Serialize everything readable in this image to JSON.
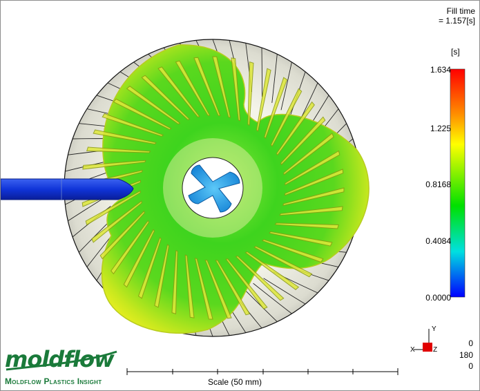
{
  "result": {
    "title": "Fill time",
    "value_line": "= 1.157[s]"
  },
  "legend": {
    "unit": "[s]",
    "ticks": [
      "1.634",
      "1.225",
      "0.8168",
      "0.4084",
      "0.0000"
    ],
    "gradient_colors": [
      "#ff0000",
      "#ffa000",
      "#ffff00",
      "#00e000",
      "#00ffff",
      "#0000ff"
    ]
  },
  "scale": {
    "label": "Scale (50 mm)"
  },
  "axis_triad": {
    "labels": [
      "X",
      "Y",
      "Z"
    ],
    "accent": "#e00000"
  },
  "rotation": {
    "x": "0",
    "y": "180",
    "z": "0"
  },
  "branding": {
    "logo": "moldflow",
    "product": "Moldflow Plastics Insight"
  },
  "colors": {
    "part_green": "#3cd61a",
    "part_yellow": "#d8ea1c",
    "runner_blue": "#1436d2",
    "hub_cyan": "#2aa8e8",
    "logo_green": "#1a7a3a"
  }
}
